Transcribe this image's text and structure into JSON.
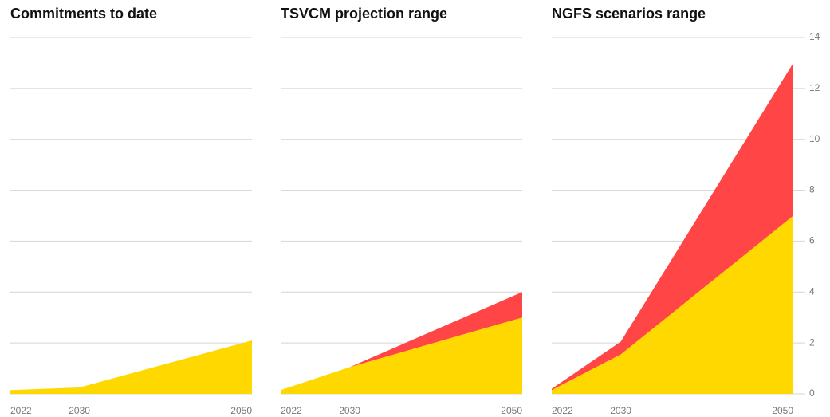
{
  "chart_data": [
    {
      "type": "area",
      "title": "Commitments to date",
      "x": [
        2022,
        2030,
        2050
      ],
      "xlim": [
        2022,
        2050
      ],
      "xticks": [
        2022,
        2030,
        2050
      ],
      "ylim": [
        0,
        14
      ],
      "yticks": [
        0,
        2,
        4,
        6,
        8,
        10,
        12,
        14
      ],
      "grid": true,
      "stacked": true,
      "series": [
        {
          "color": "#ffd800",
          "values": [
            0.15,
            0.25,
            2.1
          ]
        }
      ]
    },
    {
      "type": "area",
      "title": "TSVCM projection range",
      "x": [
        2022,
        2030,
        2050
      ],
      "xlim": [
        2022,
        2050
      ],
      "xticks": [
        2022,
        2030,
        2050
      ],
      "ylim": [
        0,
        14
      ],
      "yticks": [
        0,
        2,
        4,
        6,
        8,
        10,
        12,
        14
      ],
      "grid": true,
      "stacked": true,
      "series": [
        {
          "color": "#ffd800",
          "values": [
            0.15,
            1.05,
            3.0
          ]
        },
        {
          "color": "#ff4545",
          "values": [
            0,
            0,
            1.0
          ]
        }
      ]
    },
    {
      "type": "area",
      "title": "NGFS scenarios range",
      "x": [
        2022,
        2030,
        2050
      ],
      "xlim": [
        2022,
        2050
      ],
      "xticks": [
        2022,
        2030,
        2050
      ],
      "ylim": [
        0,
        14
      ],
      "yticks": [
        0,
        2,
        4,
        6,
        8,
        10,
        12,
        14
      ],
      "grid": true,
      "stacked": true,
      "yaxis_side": "right",
      "series": [
        {
          "color": "#ffd800",
          "values": [
            0.15,
            1.55,
            7.0
          ]
        },
        {
          "color": "#ff4545",
          "values": [
            0.05,
            0.5,
            6.0
          ]
        }
      ]
    }
  ]
}
